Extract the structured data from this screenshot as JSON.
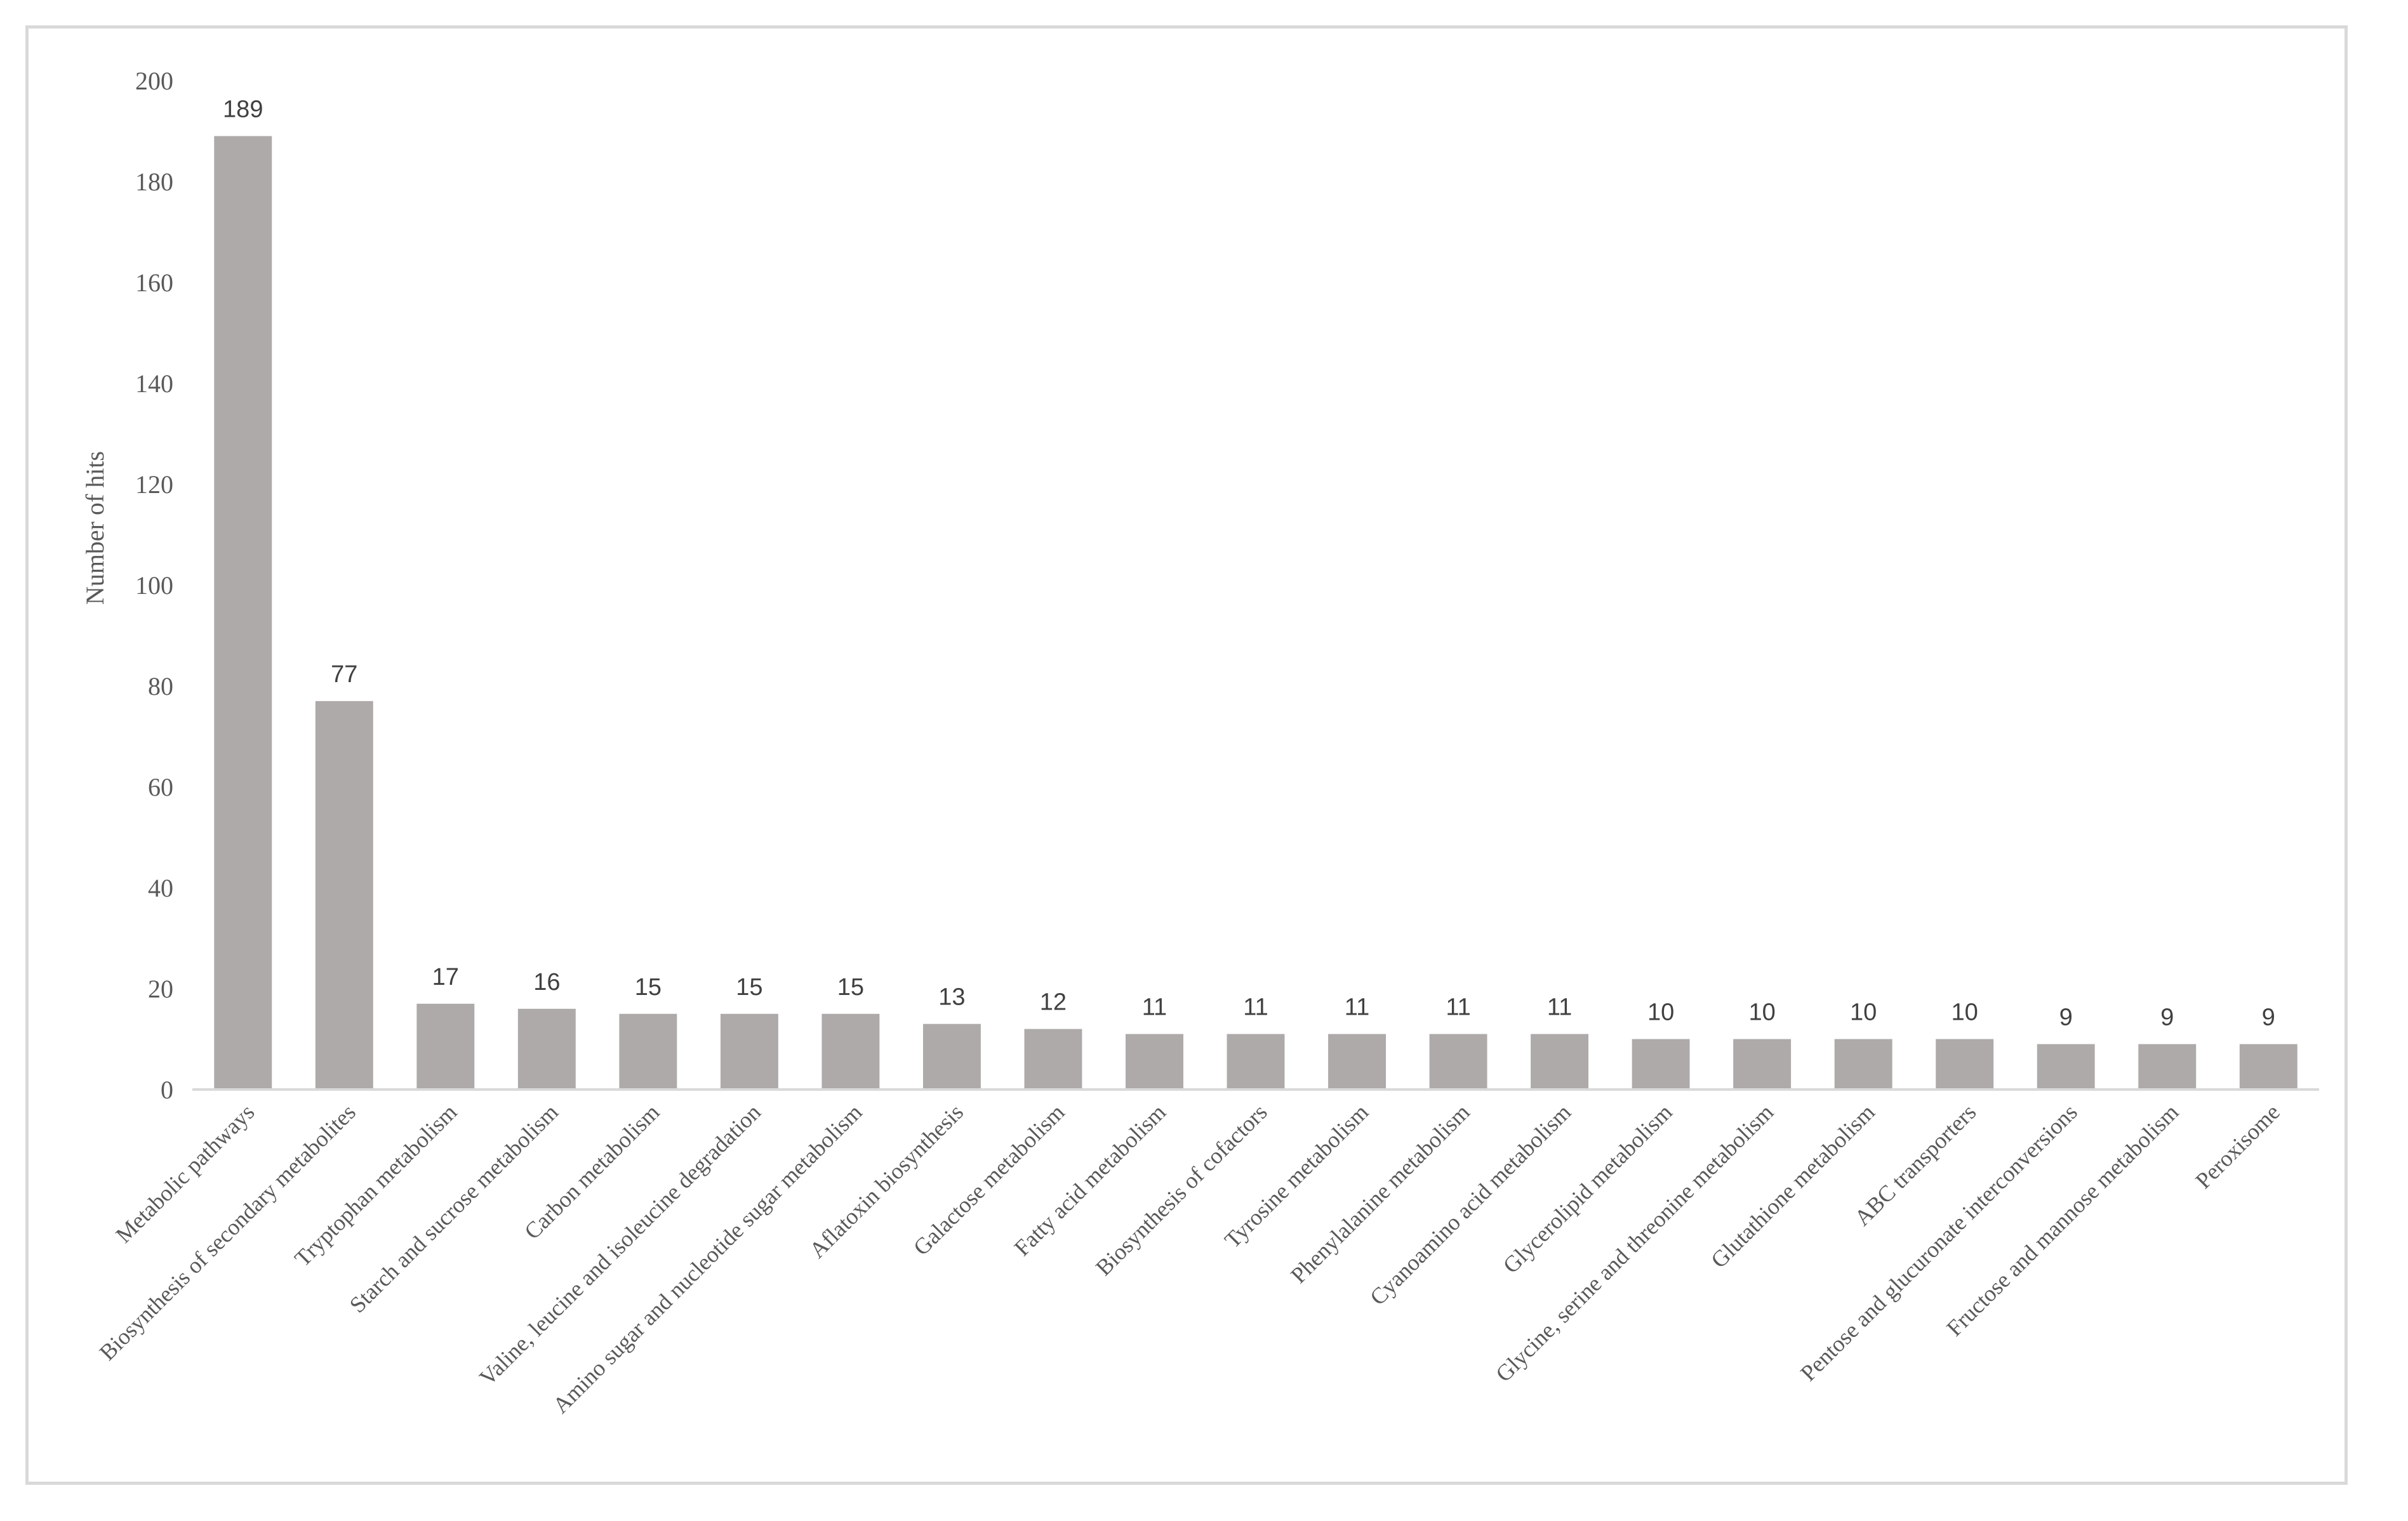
{
  "chart_data": {
    "type": "bar",
    "title": "",
    "xlabel": "",
    "ylabel": "Number of hits",
    "ylim": [
      0,
      200
    ],
    "yticks": [
      0,
      20,
      40,
      60,
      80,
      100,
      120,
      140,
      160,
      180,
      200
    ],
    "grid": false,
    "legend": "none",
    "bar_color": "#aeaaaa",
    "categories": [
      "Metabolic pathways",
      "Biosynthesis of secondary metabolites",
      "Tryptophan metabolism",
      "Starch and sucrose metabolism",
      "Carbon metabolism",
      "Valine, leucine and isoleucine degradation",
      "Amino sugar and nucleotide sugar metabolism",
      "Aflatoxin biosynthesis",
      "Galactose metabolism",
      "Fatty acid metabolism",
      "Biosynthesis of cofactors",
      "Tyrosine metabolism",
      "Phenylalanine metabolism",
      "Cyanoamino acid metabolism",
      "Glycerolipid metabolism",
      "Glycine, serine and threonine metabolism",
      "Glutathione metabolism",
      "ABC transporters",
      "Pentose and glucuronate interconversions",
      "Fructose and mannose metabolism",
      "Peroxisome"
    ],
    "values": [
      189,
      77,
      17,
      16,
      15,
      15,
      15,
      13,
      12,
      11,
      11,
      11,
      11,
      11,
      10,
      10,
      10,
      10,
      9,
      9,
      9
    ]
  }
}
